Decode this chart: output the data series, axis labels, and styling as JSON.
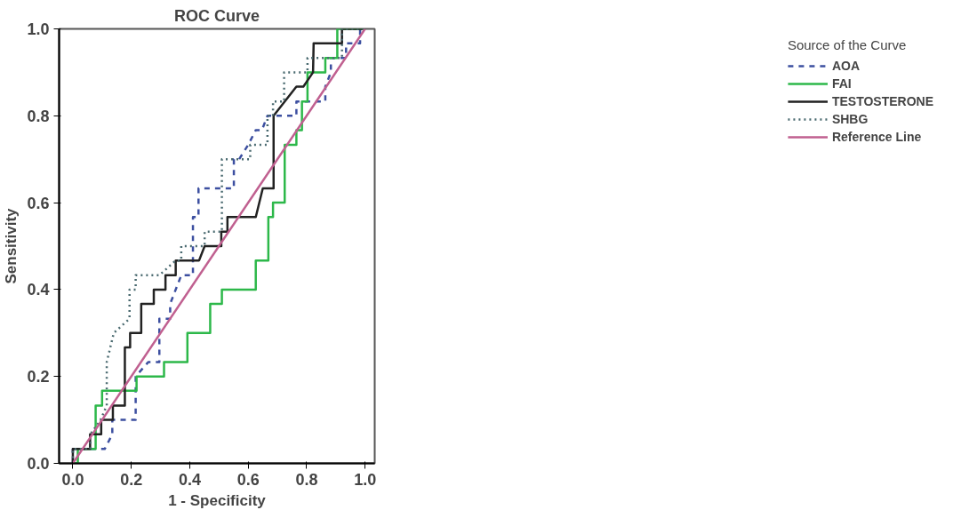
{
  "chart_data": {
    "type": "line",
    "title": "ROC Curve",
    "xlabel": "1 - Specificity",
    "ylabel": "Sensitivity",
    "legend_title": "Source of the Curve",
    "legend": "right",
    "grid": false,
    "marker": "none",
    "xlim": [
      -0.047,
      1.033
    ],
    "ylim": [
      0,
      1
    ],
    "xticks": [
      {
        "value": 0,
        "label": "0.0"
      },
      {
        "value": 0.2,
        "label": "0.2"
      },
      {
        "value": 0.4,
        "label": "0.4"
      },
      {
        "value": 0.6,
        "label": "0.6"
      },
      {
        "value": 0.8,
        "label": "0.8"
      },
      {
        "value": 1,
        "label": "1.0"
      }
    ],
    "yticks": [
      {
        "value": 0,
        "label": "0.0"
      },
      {
        "value": 0.2,
        "label": "0.2"
      },
      {
        "value": 0.4,
        "label": "0.4"
      },
      {
        "value": 0.6,
        "label": "0.6"
      },
      {
        "value": 0.8,
        "label": "0.8"
      },
      {
        "value": 1,
        "label": "1.0"
      }
    ],
    "series": [
      {
        "name": "AOA",
        "color": "#3c4fa0",
        "line_style": "dashed",
        "x": [
          0,
          0,
          0.109,
          0.135,
          0.135,
          0.215,
          0.215,
          0.258,
          0.296,
          0.296,
          0.333,
          0.333,
          0.371,
          0.411,
          0.411,
          0.43,
          0.43,
          0.551,
          0.551,
          0.569,
          0.6,
          0.626,
          0.647,
          0.666,
          0.765,
          0.765,
          0.864,
          0.864,
          0.883,
          0.883,
          0.935,
          0.935,
          0.983,
          0.983,
          1
        ],
        "values": [
          0,
          0.033,
          0.033,
          0.067,
          0.1,
          0.1,
          0.2,
          0.233,
          0.233,
          0.333,
          0.333,
          0.367,
          0.433,
          0.433,
          0.567,
          0.567,
          0.633,
          0.633,
          0.7,
          0.7,
          0.733,
          0.767,
          0.767,
          0.8,
          0.8,
          0.833,
          0.833,
          0.867,
          0.9,
          0.933,
          0.933,
          0.967,
          0.967,
          1,
          1
        ]
      },
      {
        "name": "FAI",
        "color": "#2db84a",
        "line_style": "solid",
        "x": [
          0,
          0.017,
          0.017,
          0.078,
          0.078,
          0.1,
          0.1,
          0.218,
          0.218,
          0.312,
          0.312,
          0.392,
          0.392,
          0.47,
          0.47,
          0.51,
          0.51,
          0.626,
          0.626,
          0.669,
          0.669,
          0.685,
          0.685,
          0.725,
          0.725,
          0.765,
          0.765,
          0.784,
          0.784,
          0.803,
          0.803,
          0.864,
          0.864,
          0.905,
          0.905,
          1
        ],
        "values": [
          0,
          0,
          0.033,
          0.033,
          0.133,
          0.133,
          0.167,
          0.167,
          0.2,
          0.2,
          0.233,
          0.233,
          0.3,
          0.3,
          0.367,
          0.367,
          0.4,
          0.4,
          0.467,
          0.467,
          0.567,
          0.567,
          0.6,
          0.6,
          0.733,
          0.733,
          0.767,
          0.767,
          0.833,
          0.833,
          0.9,
          0.9,
          0.933,
          0.933,
          1,
          1
        ]
      },
      {
        "name": "TESTOSTERONE",
        "color": "#222222",
        "line_style": "solid",
        "x": [
          0,
          0,
          0.059,
          0.059,
          0.097,
          0.097,
          0.137,
          0.137,
          0.178,
          0.178,
          0.196,
          0.196,
          0.234,
          0.234,
          0.277,
          0.277,
          0.317,
          0.317,
          0.352,
          0.352,
          0.432,
          0.451,
          0.508,
          0.508,
          0.529,
          0.529,
          0.626,
          0.65,
          0.687,
          0.687,
          0.765,
          0.789,
          0.822,
          0.824,
          0.921,
          0.921,
          1
        ],
        "values": [
          0,
          0.033,
          0.033,
          0.067,
          0.067,
          0.1,
          0.1,
          0.133,
          0.133,
          0.267,
          0.267,
          0.3,
          0.3,
          0.367,
          0.367,
          0.4,
          0.4,
          0.433,
          0.433,
          0.467,
          0.467,
          0.5,
          0.5,
          0.533,
          0.533,
          0.567,
          0.567,
          0.633,
          0.633,
          0.8,
          0.867,
          0.867,
          0.9,
          0.967,
          0.967,
          1,
          1
        ]
      },
      {
        "name": "SHBG",
        "color": "#4a6a70",
        "line_style": "dotted",
        "x": [
          0,
          0,
          0.06,
          0.06,
          0.095,
          0.116,
          0.116,
          0.14,
          0.194,
          0.194,
          0.215,
          0.215,
          0.296,
          0.352,
          0.371,
          0.371,
          0.451,
          0.451,
          0.51,
          0.51,
          0.607,
          0.607,
          0.666,
          0.666,
          0.685,
          0.685,
          0.723,
          0.723,
          0.803,
          0.803,
          0.921,
          0.921,
          1
        ],
        "values": [
          0,
          0.033,
          0.033,
          0.067,
          0.1,
          0.133,
          0.233,
          0.3,
          0.333,
          0.4,
          0.4,
          0.433,
          0.433,
          0.467,
          0.467,
          0.5,
          0.5,
          0.533,
          0.533,
          0.7,
          0.7,
          0.733,
          0.733,
          0.8,
          0.8,
          0.833,
          0.833,
          0.9,
          0.9,
          0.933,
          0.933,
          1,
          1
        ]
      },
      {
        "name": "Reference Line",
        "color": "#c06090",
        "line_style": "solid",
        "x": [
          0,
          1
        ],
        "values": [
          0,
          1
        ]
      }
    ]
  }
}
